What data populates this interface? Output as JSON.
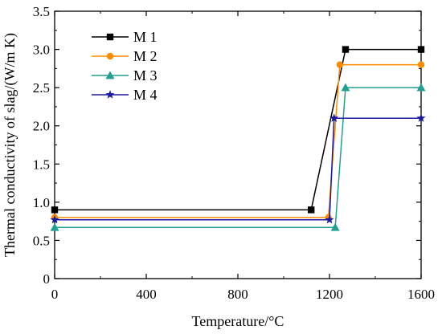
{
  "chart_data": {
    "type": "line",
    "title": "",
    "xlabel": "Temperature/°C",
    "ylabel": "Thermal conductivity of slag/(W/m K)",
    "xlim": [
      0,
      1600
    ],
    "ylim": [
      0,
      3.5
    ],
    "xticks": [
      "0",
      "400",
      "800",
      "1200",
      "1600"
    ],
    "yticks": [
      "0",
      "0.5",
      "1.0",
      "1.5",
      "2.0",
      "2.5",
      "3.0",
      "3.5"
    ],
    "grid": false,
    "legend_position": "top-left",
    "series": [
      {
        "name": "M 1",
        "color": "#000000",
        "marker": "square",
        "x": [
          0,
          1120,
          1270,
          1600
        ],
        "y": [
          0.9,
          0.9,
          3.0,
          3.0
        ]
      },
      {
        "name": "M 2",
        "color": "#ff8c00",
        "marker": "circle",
        "x": [
          0,
          1195,
          1245,
          1600
        ],
        "y": [
          0.8,
          0.8,
          2.8,
          2.8
        ]
      },
      {
        "name": "M 3",
        "color": "#20a090",
        "marker": "triangle",
        "x": [
          0,
          1225,
          1270,
          1600
        ],
        "y": [
          0.67,
          0.67,
          2.5,
          2.5
        ]
      },
      {
        "name": "M 4",
        "color": "#1a1aa0",
        "marker": "star",
        "x": [
          0,
          1200,
          1220,
          1600
        ],
        "y": [
          0.77,
          0.77,
          2.1,
          2.1
        ]
      }
    ]
  }
}
